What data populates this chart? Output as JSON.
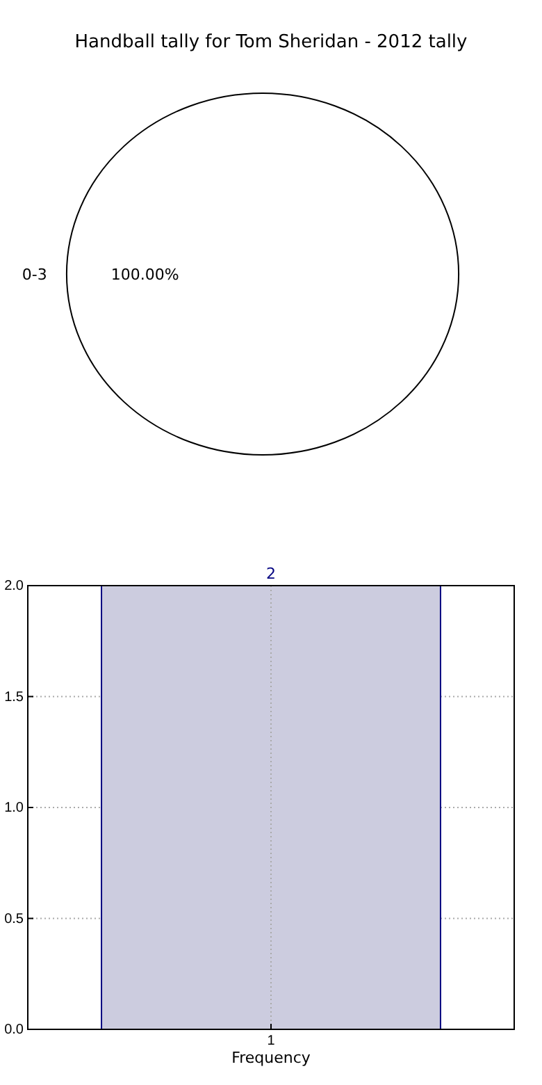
{
  "chart_data": [
    {
      "type": "pie",
      "title": "Handball tally for Tom Sheridan - 2012 tally",
      "categories": [
        "0-3"
      ],
      "values": [
        100
      ],
      "value_labels": [
        "100.00%"
      ],
      "colors": [
        "#ffffff"
      ]
    },
    {
      "type": "bar",
      "xlabel": "Frequency",
      "categories": [
        "1"
      ],
      "values": [
        2
      ],
      "color": "#ccccdf",
      "ylim": [
        0,
        2
      ],
      "yticks": [
        {
          "value": 0,
          "label": "0.0"
        },
        {
          "value": 0.5,
          "label": "0.5"
        },
        {
          "value": 1,
          "label": "1.0"
        },
        {
          "value": 1.5,
          "label": "1.5"
        },
        {
          "value": 2,
          "label": "2.0"
        }
      ],
      "grid": true,
      "data_labels": true
    }
  ]
}
